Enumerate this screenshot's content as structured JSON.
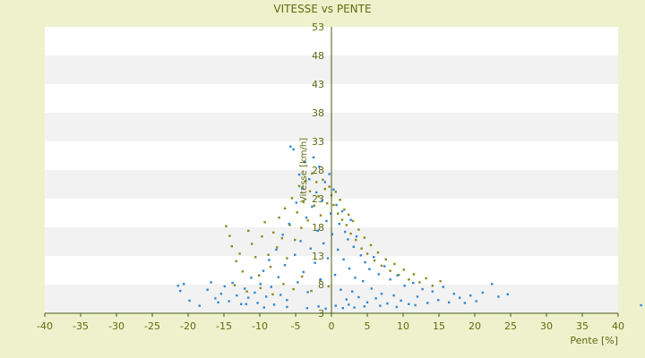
{
  "chart_data": {
    "type": "scatter",
    "title": "VITESSE vs PENTE",
    "xlabel": "Pente [%]",
    "ylabel": "Vitesse [km/h]",
    "xlim": [
      -40,
      40
    ],
    "ylim": [
      3,
      53
    ],
    "x_ticks": [
      -40,
      -35,
      -30,
      -25,
      -20,
      -15,
      -10,
      -5,
      0,
      5,
      10,
      15,
      20,
      25,
      30,
      35,
      40
    ],
    "y_ticks": [
      3,
      8,
      13,
      18,
      23,
      28,
      33,
      38,
      43,
      48,
      53
    ],
    "grid": "alternating horizontal bands",
    "series": [
      {
        "color": "#8a8a1a",
        "points": [
          [
            -14.7,
            18.2
          ],
          [
            -14.2,
            16.5
          ],
          [
            -13.9,
            14.7
          ],
          [
            -13.3,
            12.1
          ],
          [
            -12.8,
            13.4
          ],
          [
            -12.4,
            10.3
          ],
          [
            -11.6,
            17.4
          ],
          [
            -11.1,
            15.1
          ],
          [
            -10.6,
            12.8
          ],
          [
            -10.1,
            9.6
          ],
          [
            -9.7,
            16.4
          ],
          [
            -9.3,
            18.9
          ],
          [
            -8.8,
            13.2
          ],
          [
            -8.5,
            11.1
          ],
          [
            -8.1,
            17.1
          ],
          [
            -7.6,
            14.5
          ],
          [
            -7.3,
            19.7
          ],
          [
            -6.9,
            16.1
          ],
          [
            -6.5,
            21.3
          ],
          [
            -6.2,
            12.6
          ],
          [
            -5.8,
            18.4
          ],
          [
            -5.5,
            23.1
          ],
          [
            -5.1,
            15.8
          ],
          [
            -4.8,
            20.6
          ],
          [
            -4.5,
            25.2
          ],
          [
            -4.2,
            17.9
          ],
          [
            -3.9,
            22.4
          ],
          [
            -3.6,
            26.1
          ],
          [
            -3.3,
            19.2
          ],
          [
            -3.0,
            24.3
          ],
          [
            -2.7,
            27.4
          ],
          [
            -2.4,
            21.8
          ],
          [
            -2.1,
            25.9
          ],
          [
            -1.8,
            23.4
          ],
          [
            -1.5,
            20.1
          ],
          [
            -1.2,
            26.3
          ],
          [
            -0.9,
            24.7
          ],
          [
            -0.6,
            22.2
          ],
          [
            -0.3,
            25.1
          ],
          [
            0.0,
            23.6
          ],
          [
            0.3,
            21.9
          ],
          [
            0.6,
            24.2
          ],
          [
            0.9,
            20.4
          ],
          [
            1.2,
            22.8
          ],
          [
            1.5,
            19.3
          ],
          [
            1.8,
            21.1
          ],
          [
            2.1,
            18.4
          ],
          [
            2.4,
            20.2
          ],
          [
            2.7,
            16.9
          ],
          [
            3.0,
            19.1
          ],
          [
            3.4,
            15.8
          ],
          [
            3.8,
            17.6
          ],
          [
            4.2,
            14.3
          ],
          [
            4.6,
            16.2
          ],
          [
            5.0,
            13.4
          ],
          [
            5.5,
            14.9
          ],
          [
            6.0,
            12.2
          ],
          [
            6.5,
            13.6
          ],
          [
            7.0,
            11.3
          ],
          [
            7.6,
            12.4
          ],
          [
            8.2,
            10.4
          ],
          [
            8.8,
            11.6
          ],
          [
            9.4,
            9.7
          ],
          [
            10.1,
            10.6
          ],
          [
            10.8,
            8.9
          ],
          [
            11.5,
            9.8
          ],
          [
            12.3,
            8.4
          ],
          [
            13.2,
            9.1
          ],
          [
            14.1,
            7.8
          ],
          [
            15.2,
            8.6
          ],
          [
            -13.5,
            7.9
          ],
          [
            -11.8,
            6.8
          ],
          [
            -9.9,
            7.4
          ],
          [
            -8.2,
            6.3
          ],
          [
            -6.7,
            8.1
          ],
          [
            -5.3,
            7.2
          ],
          [
            -4.1,
            9.4
          ],
          [
            -2.8,
            6.9
          ],
          [
            -1.6,
            8.8
          ],
          [
            -0.4,
            7.7
          ]
        ]
      },
      {
        "color": "#2e86d6",
        "points": [
          [
            -21.4,
            7.8
          ],
          [
            -21.1,
            6.9
          ],
          [
            -19.8,
            5.2
          ],
          [
            -17.3,
            7.1
          ],
          [
            -16.2,
            5.6
          ],
          [
            -15.8,
            4.9
          ],
          [
            -15.4,
            6.4
          ],
          [
            -14.9,
            7.7
          ],
          [
            -14.3,
            5.1
          ],
          [
            -13.8,
            8.3
          ],
          [
            -13.2,
            6.1
          ],
          [
            -12.6,
            4.6
          ],
          [
            -12.1,
            7.3
          ],
          [
            -11.6,
            5.7
          ],
          [
            -11.2,
            9.2
          ],
          [
            -10.7,
            6.6
          ],
          [
            -10.3,
            4.8
          ],
          [
            -9.9,
            8.1
          ],
          [
            -9.5,
            10.4
          ],
          [
            -9.1,
            5.9
          ],
          [
            -8.7,
            12.3
          ],
          [
            -8.4,
            7.6
          ],
          [
            -8.0,
            4.5
          ],
          [
            -7.7,
            14.1
          ],
          [
            -7.4,
            9.3
          ],
          [
            -7.1,
            6.2
          ],
          [
            -6.8,
            16.7
          ],
          [
            -6.5,
            11.4
          ],
          [
            -6.2,
            5.3
          ],
          [
            -5.9,
            18.6
          ],
          [
            -5.7,
            32.1
          ],
          [
            -5.3,
            31.6
          ],
          [
            -5.1,
            13.2
          ],
          [
            -4.9,
            22.3
          ],
          [
            -4.7,
            8.4
          ],
          [
            -4.5,
            27.2
          ],
          [
            -4.3,
            15.6
          ],
          [
            -4.1,
            24.8
          ],
          [
            -3.9,
            10.2
          ],
          [
            -3.7,
            29.4
          ],
          [
            -3.5,
            19.7
          ],
          [
            -3.3,
            6.7
          ],
          [
            -3.1,
            26.4
          ],
          [
            -2.9,
            14.3
          ],
          [
            -2.7,
            21.6
          ],
          [
            -2.5,
            30.2
          ],
          [
            -2.3,
            11.8
          ],
          [
            -2.1,
            24.1
          ],
          [
            -1.9,
            17.4
          ],
          [
            -1.7,
            28.6
          ],
          [
            -1.5,
            8.9
          ],
          [
            -1.3,
            22.7
          ],
          [
            -1.1,
            15.2
          ],
          [
            -0.9,
            25.9
          ],
          [
            -0.7,
            19.1
          ],
          [
            -0.5,
            12.6
          ],
          [
            -0.3,
            27.3
          ],
          [
            -0.1,
            20.4
          ],
          [
            0.1,
            16.8
          ],
          [
            0.3,
            24.6
          ],
          [
            0.5,
            9.7
          ],
          [
            0.7,
            21.9
          ],
          [
            0.9,
            14.1
          ],
          [
            1.1,
            18.6
          ],
          [
            1.3,
            7.1
          ],
          [
            1.5,
            20.8
          ],
          [
            1.7,
            12.4
          ],
          [
            1.9,
            17.2
          ],
          [
            2.1,
            5.4
          ],
          [
            2.3,
            15.9
          ],
          [
            2.5,
            10.8
          ],
          [
            2.7,
            19.3
          ],
          [
            2.9,
            6.8
          ],
          [
            3.1,
            14.6
          ],
          [
            3.3,
            9.2
          ],
          [
            3.5,
            16.4
          ],
          [
            3.8,
            5.8
          ],
          [
            4.1,
            13.1
          ],
          [
            4.4,
            8.6
          ],
          [
            4.7,
            11.9
          ],
          [
            5.0,
            4.9
          ],
          [
            5.3,
            10.7
          ],
          [
            5.6,
            7.3
          ],
          [
            5.9,
            12.8
          ],
          [
            6.2,
            5.6
          ],
          [
            6.6,
            9.8
          ],
          [
            7.0,
            6.4
          ],
          [
            7.4,
            11.2
          ],
          [
            7.8,
            4.7
          ],
          [
            8.2,
            8.9
          ],
          [
            8.7,
            6.1
          ],
          [
            9.2,
            9.6
          ],
          [
            9.7,
            5.2
          ],
          [
            10.2,
            7.8
          ],
          [
            10.8,
            4.6
          ],
          [
            11.4,
            8.3
          ],
          [
            12.0,
            5.9
          ],
          [
            12.7,
            7.2
          ],
          [
            13.4,
            4.8
          ],
          [
            14.1,
            6.8
          ],
          [
            14.9,
            5.3
          ],
          [
            15.6,
            7.6
          ],
          [
            16.4,
            4.9
          ],
          [
            17.1,
            6.4
          ],
          [
            17.9,
            5.7
          ],
          [
            18.6,
            4.8
          ],
          [
            19.4,
            6.1
          ],
          [
            20.2,
            5.1
          ],
          [
            21.1,
            6.6
          ],
          [
            22.4,
            8.1
          ],
          [
            23.3,
            5.9
          ],
          [
            24.6,
            6.3
          ],
          [
            43.2,
            4.4
          ],
          [
            -18.4,
            4.3
          ],
          [
            -20.6,
            8.1
          ],
          [
            -16.8,
            8.4
          ],
          [
            -1.8,
            4.2
          ],
          [
            0.6,
            4.3
          ],
          [
            2.4,
            4.5
          ],
          [
            4.6,
            4.2
          ],
          [
            -6.2,
            4.1
          ],
          [
            -3.4,
            3.9
          ],
          [
            -0.8,
            3.8
          ],
          [
            1.6,
            3.9
          ],
          [
            3.2,
            4.0
          ],
          [
            6.8,
            4.3
          ],
          [
            9.1,
            4.1
          ],
          [
            11.7,
            4.4
          ],
          [
            -9.4,
            4.0
          ],
          [
            -11.9,
            4.6
          ]
        ]
      }
    ]
  }
}
